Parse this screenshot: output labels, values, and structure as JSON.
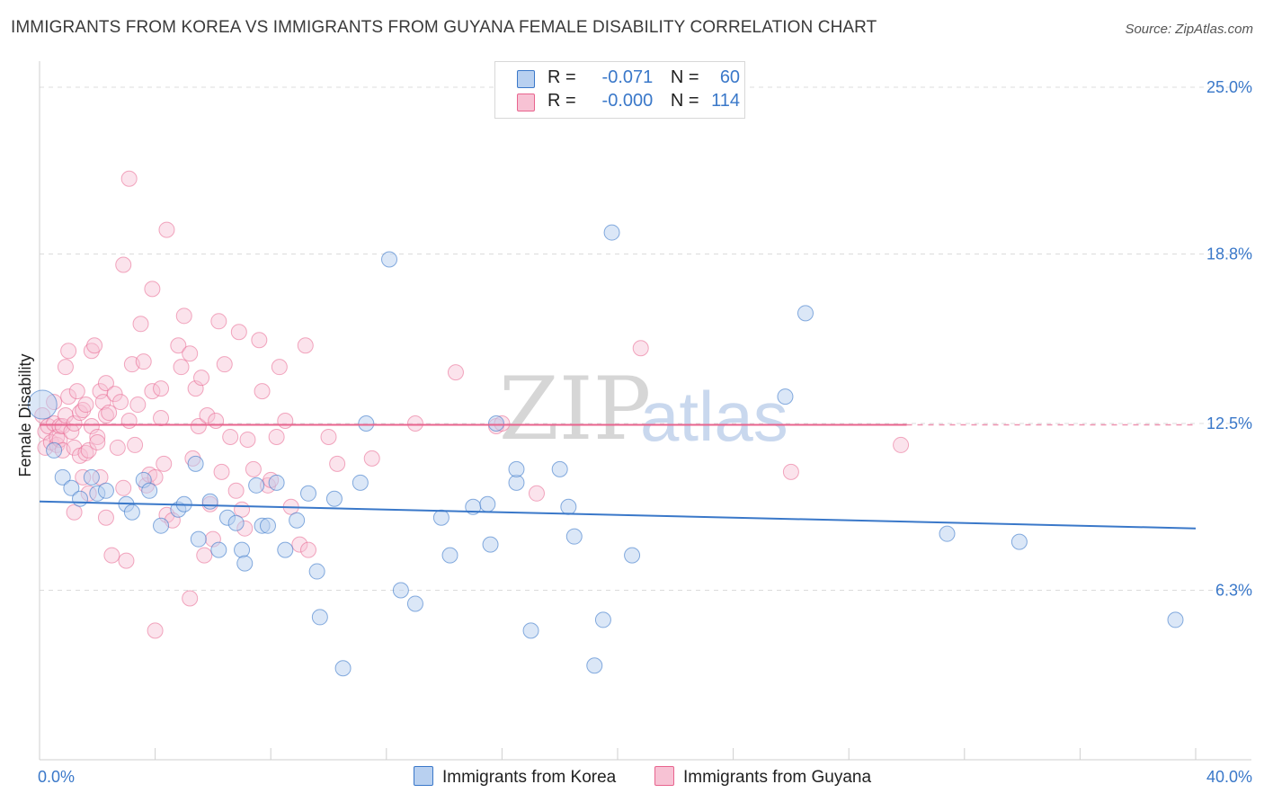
{
  "title": "IMMIGRANTS FROM KOREA VS IMMIGRANTS FROM GUYANA FEMALE DISABILITY CORRELATION CHART",
  "source": "Source: ZipAtlas.com",
  "watermark": {
    "zip": "ZIP",
    "atlas": "atlas"
  },
  "colors": {
    "korea": "#3a78c9",
    "korea_fill": "#b8d0f0",
    "guyana": "#e8648e",
    "guyana_fill": "#f7c2d4"
  },
  "legend": {
    "korea": {
      "r_label": "R =",
      "r_value": "-0.071",
      "n_label": "N =",
      "n_value": "60"
    },
    "guyana": {
      "r_label": "R =",
      "r_value": "-0.000",
      "n_label": "N =",
      "n_value": "114"
    }
  },
  "bottom_legend": {
    "korea": "Immigrants from Korea",
    "guyana": "Immigrants from Guyana"
  },
  "chart_data": {
    "type": "scatter",
    "title": "IMMIGRANTS FROM KOREA VS IMMIGRANTS FROM GUYANA FEMALE DISABILITY CORRELATION CHART",
    "xlabel": "",
    "ylabel": "Female Disability",
    "xlim": [
      0,
      40
    ],
    "ylim": [
      0,
      26
    ],
    "x_tick_labels": [
      "0.0%",
      "40.0%"
    ],
    "y_ticks": [
      6.3,
      12.5,
      18.8,
      25.0
    ],
    "y_tick_labels": [
      "6.3%",
      "12.5%",
      "18.8%",
      "25.0%"
    ],
    "grid": true,
    "series": [
      {
        "name": "Immigrants from Korea",
        "color": "#3a78c9",
        "trend": {
          "x": [
            0,
            40
          ],
          "y": [
            9.6,
            8.6
          ]
        },
        "points": [
          [
            0.1,
            13.2
          ],
          [
            0.5,
            11.5
          ],
          [
            0.8,
            10.5
          ],
          [
            1.1,
            10.1
          ],
          [
            1.4,
            9.7
          ],
          [
            1.8,
            10.5
          ],
          [
            2.0,
            9.9
          ],
          [
            2.3,
            10.0
          ],
          [
            3.0,
            9.5
          ],
          [
            3.2,
            9.2
          ],
          [
            3.6,
            10.4
          ],
          [
            3.8,
            10.0
          ],
          [
            4.2,
            8.7
          ],
          [
            4.8,
            9.3
          ],
          [
            5.0,
            9.5
          ],
          [
            5.4,
            11.0
          ],
          [
            5.5,
            8.2
          ],
          [
            5.9,
            9.6
          ],
          [
            6.2,
            7.8
          ],
          [
            6.5,
            9.0
          ],
          [
            6.8,
            8.8
          ],
          [
            7.0,
            7.8
          ],
          [
            7.1,
            7.3
          ],
          [
            7.5,
            10.2
          ],
          [
            7.7,
            8.7
          ],
          [
            7.9,
            8.7
          ],
          [
            8.2,
            10.3
          ],
          [
            8.5,
            7.8
          ],
          [
            8.9,
            8.9
          ],
          [
            9.3,
            9.9
          ],
          [
            9.6,
            7.0
          ],
          [
            9.7,
            5.3
          ],
          [
            10.2,
            9.7
          ],
          [
            10.5,
            3.4
          ],
          [
            11.1,
            10.3
          ],
          [
            11.3,
            12.5
          ],
          [
            12.1,
            18.6
          ],
          [
            12.5,
            6.3
          ],
          [
            13.0,
            5.8
          ],
          [
            13.9,
            9.0
          ],
          [
            14.2,
            7.6
          ],
          [
            15.0,
            9.4
          ],
          [
            15.5,
            9.5
          ],
          [
            15.6,
            8.0
          ],
          [
            15.8,
            12.5
          ],
          [
            16.5,
            10.3
          ],
          [
            16.5,
            10.8
          ],
          [
            17.0,
            4.8
          ],
          [
            18.0,
            10.8
          ],
          [
            18.3,
            9.4
          ],
          [
            18.5,
            8.3
          ],
          [
            19.2,
            3.5
          ],
          [
            19.5,
            5.2
          ],
          [
            19.8,
            19.6
          ],
          [
            20.5,
            7.6
          ],
          [
            26.5,
            16.6
          ],
          [
            25.8,
            13.5
          ],
          [
            31.4,
            8.4
          ],
          [
            33.9,
            8.1
          ],
          [
            39.3,
            5.2
          ]
        ]
      },
      {
        "name": "Immigrants from Guyana",
        "color": "#e8648e",
        "trend": {
          "x": [
            0,
            30
          ],
          "y": [
            12.45,
            12.45
          ]
        },
        "points": [
          [
            0.1,
            12.8
          ],
          [
            0.2,
            12.2
          ],
          [
            0.2,
            11.6
          ],
          [
            0.3,
            12.4
          ],
          [
            0.4,
            11.8
          ],
          [
            0.5,
            12.5
          ],
          [
            0.5,
            13.3
          ],
          [
            0.6,
            11.7
          ],
          [
            0.6,
            12.0
          ],
          [
            0.7,
            12.4
          ],
          [
            0.7,
            11.9
          ],
          [
            0.8,
            12.4
          ],
          [
            0.8,
            11.5
          ],
          [
            0.9,
            14.6
          ],
          [
            0.9,
            12.8
          ],
          [
            1.0,
            13.5
          ],
          [
            1.0,
            15.2
          ],
          [
            1.1,
            12.2
          ],
          [
            1.2,
            11.6
          ],
          [
            1.2,
            12.5
          ],
          [
            1.2,
            9.2
          ],
          [
            1.3,
            13.7
          ],
          [
            1.4,
            12.9
          ],
          [
            1.4,
            11.3
          ],
          [
            1.5,
            10.5
          ],
          [
            1.5,
            13.0
          ],
          [
            1.6,
            11.4
          ],
          [
            1.6,
            13.2
          ],
          [
            1.7,
            9.9
          ],
          [
            1.7,
            11.5
          ],
          [
            1.8,
            15.2
          ],
          [
            1.8,
            12.4
          ],
          [
            1.9,
            15.4
          ],
          [
            2.0,
            12.0
          ],
          [
            2.0,
            11.8
          ],
          [
            2.1,
            13.7
          ],
          [
            2.1,
            10.5
          ],
          [
            2.2,
            13.3
          ],
          [
            2.3,
            14.0
          ],
          [
            2.3,
            12.8
          ],
          [
            2.3,
            9.0
          ],
          [
            2.4,
            12.9
          ],
          [
            2.5,
            7.6
          ],
          [
            2.6,
            13.6
          ],
          [
            2.7,
            11.6
          ],
          [
            2.8,
            13.3
          ],
          [
            2.9,
            18.4
          ],
          [
            2.9,
            10.1
          ],
          [
            3.0,
            7.4
          ],
          [
            3.1,
            12.6
          ],
          [
            3.2,
            14.7
          ],
          [
            3.3,
            11.7
          ],
          [
            3.4,
            13.2
          ],
          [
            3.5,
            16.2
          ],
          [
            3.6,
            14.8
          ],
          [
            3.7,
            10.2
          ],
          [
            3.8,
            10.6
          ],
          [
            3.9,
            17.5
          ],
          [
            3.9,
            13.7
          ],
          [
            4.0,
            4.8
          ],
          [
            4.0,
            10.5
          ],
          [
            4.2,
            12.7
          ],
          [
            4.2,
            13.8
          ],
          [
            4.3,
            11.0
          ],
          [
            4.4,
            9.1
          ],
          [
            4.6,
            8.9
          ],
          [
            4.8,
            15.4
          ],
          [
            4.9,
            14.6
          ],
          [
            5.0,
            16.5
          ],
          [
            5.2,
            15.1
          ],
          [
            5.3,
            11.2
          ],
          [
            5.4,
            13.8
          ],
          [
            5.5,
            12.4
          ],
          [
            5.6,
            14.2
          ],
          [
            5.8,
            12.8
          ],
          [
            5.9,
            9.5
          ],
          [
            6.0,
            8.2
          ],
          [
            6.1,
            12.6
          ],
          [
            6.3,
            10.7
          ],
          [
            6.4,
            14.7
          ],
          [
            6.6,
            12.0
          ],
          [
            6.8,
            10.0
          ],
          [
            7.0,
            9.3
          ],
          [
            7.1,
            8.6
          ],
          [
            7.2,
            11.9
          ],
          [
            7.4,
            10.8
          ],
          [
            7.6,
            15.6
          ],
          [
            7.7,
            13.7
          ],
          [
            7.9,
            10.2
          ],
          [
            8.0,
            10.4
          ],
          [
            8.2,
            12.0
          ],
          [
            8.3,
            14.6
          ],
          [
            8.5,
            12.6
          ],
          [
            8.7,
            9.4
          ],
          [
            9.0,
            8.0
          ],
          [
            9.2,
            15.4
          ],
          [
            9.3,
            7.8
          ],
          [
            10.0,
            12.0
          ],
          [
            10.3,
            11.0
          ],
          [
            11.5,
            11.2
          ],
          [
            13.0,
            12.5
          ],
          [
            14.4,
            14.4
          ],
          [
            15.8,
            12.4
          ],
          [
            16.0,
            12.5
          ],
          [
            17.2,
            9.9
          ],
          [
            20.8,
            15.3
          ],
          [
            26.0,
            10.7
          ],
          [
            29.8,
            11.7
          ],
          [
            3.1,
            21.6
          ],
          [
            4.4,
            19.7
          ],
          [
            6.9,
            15.9
          ],
          [
            5.7,
            7.6
          ],
          [
            5.2,
            6.0
          ],
          [
            6.2,
            16.3
          ]
        ]
      }
    ]
  }
}
